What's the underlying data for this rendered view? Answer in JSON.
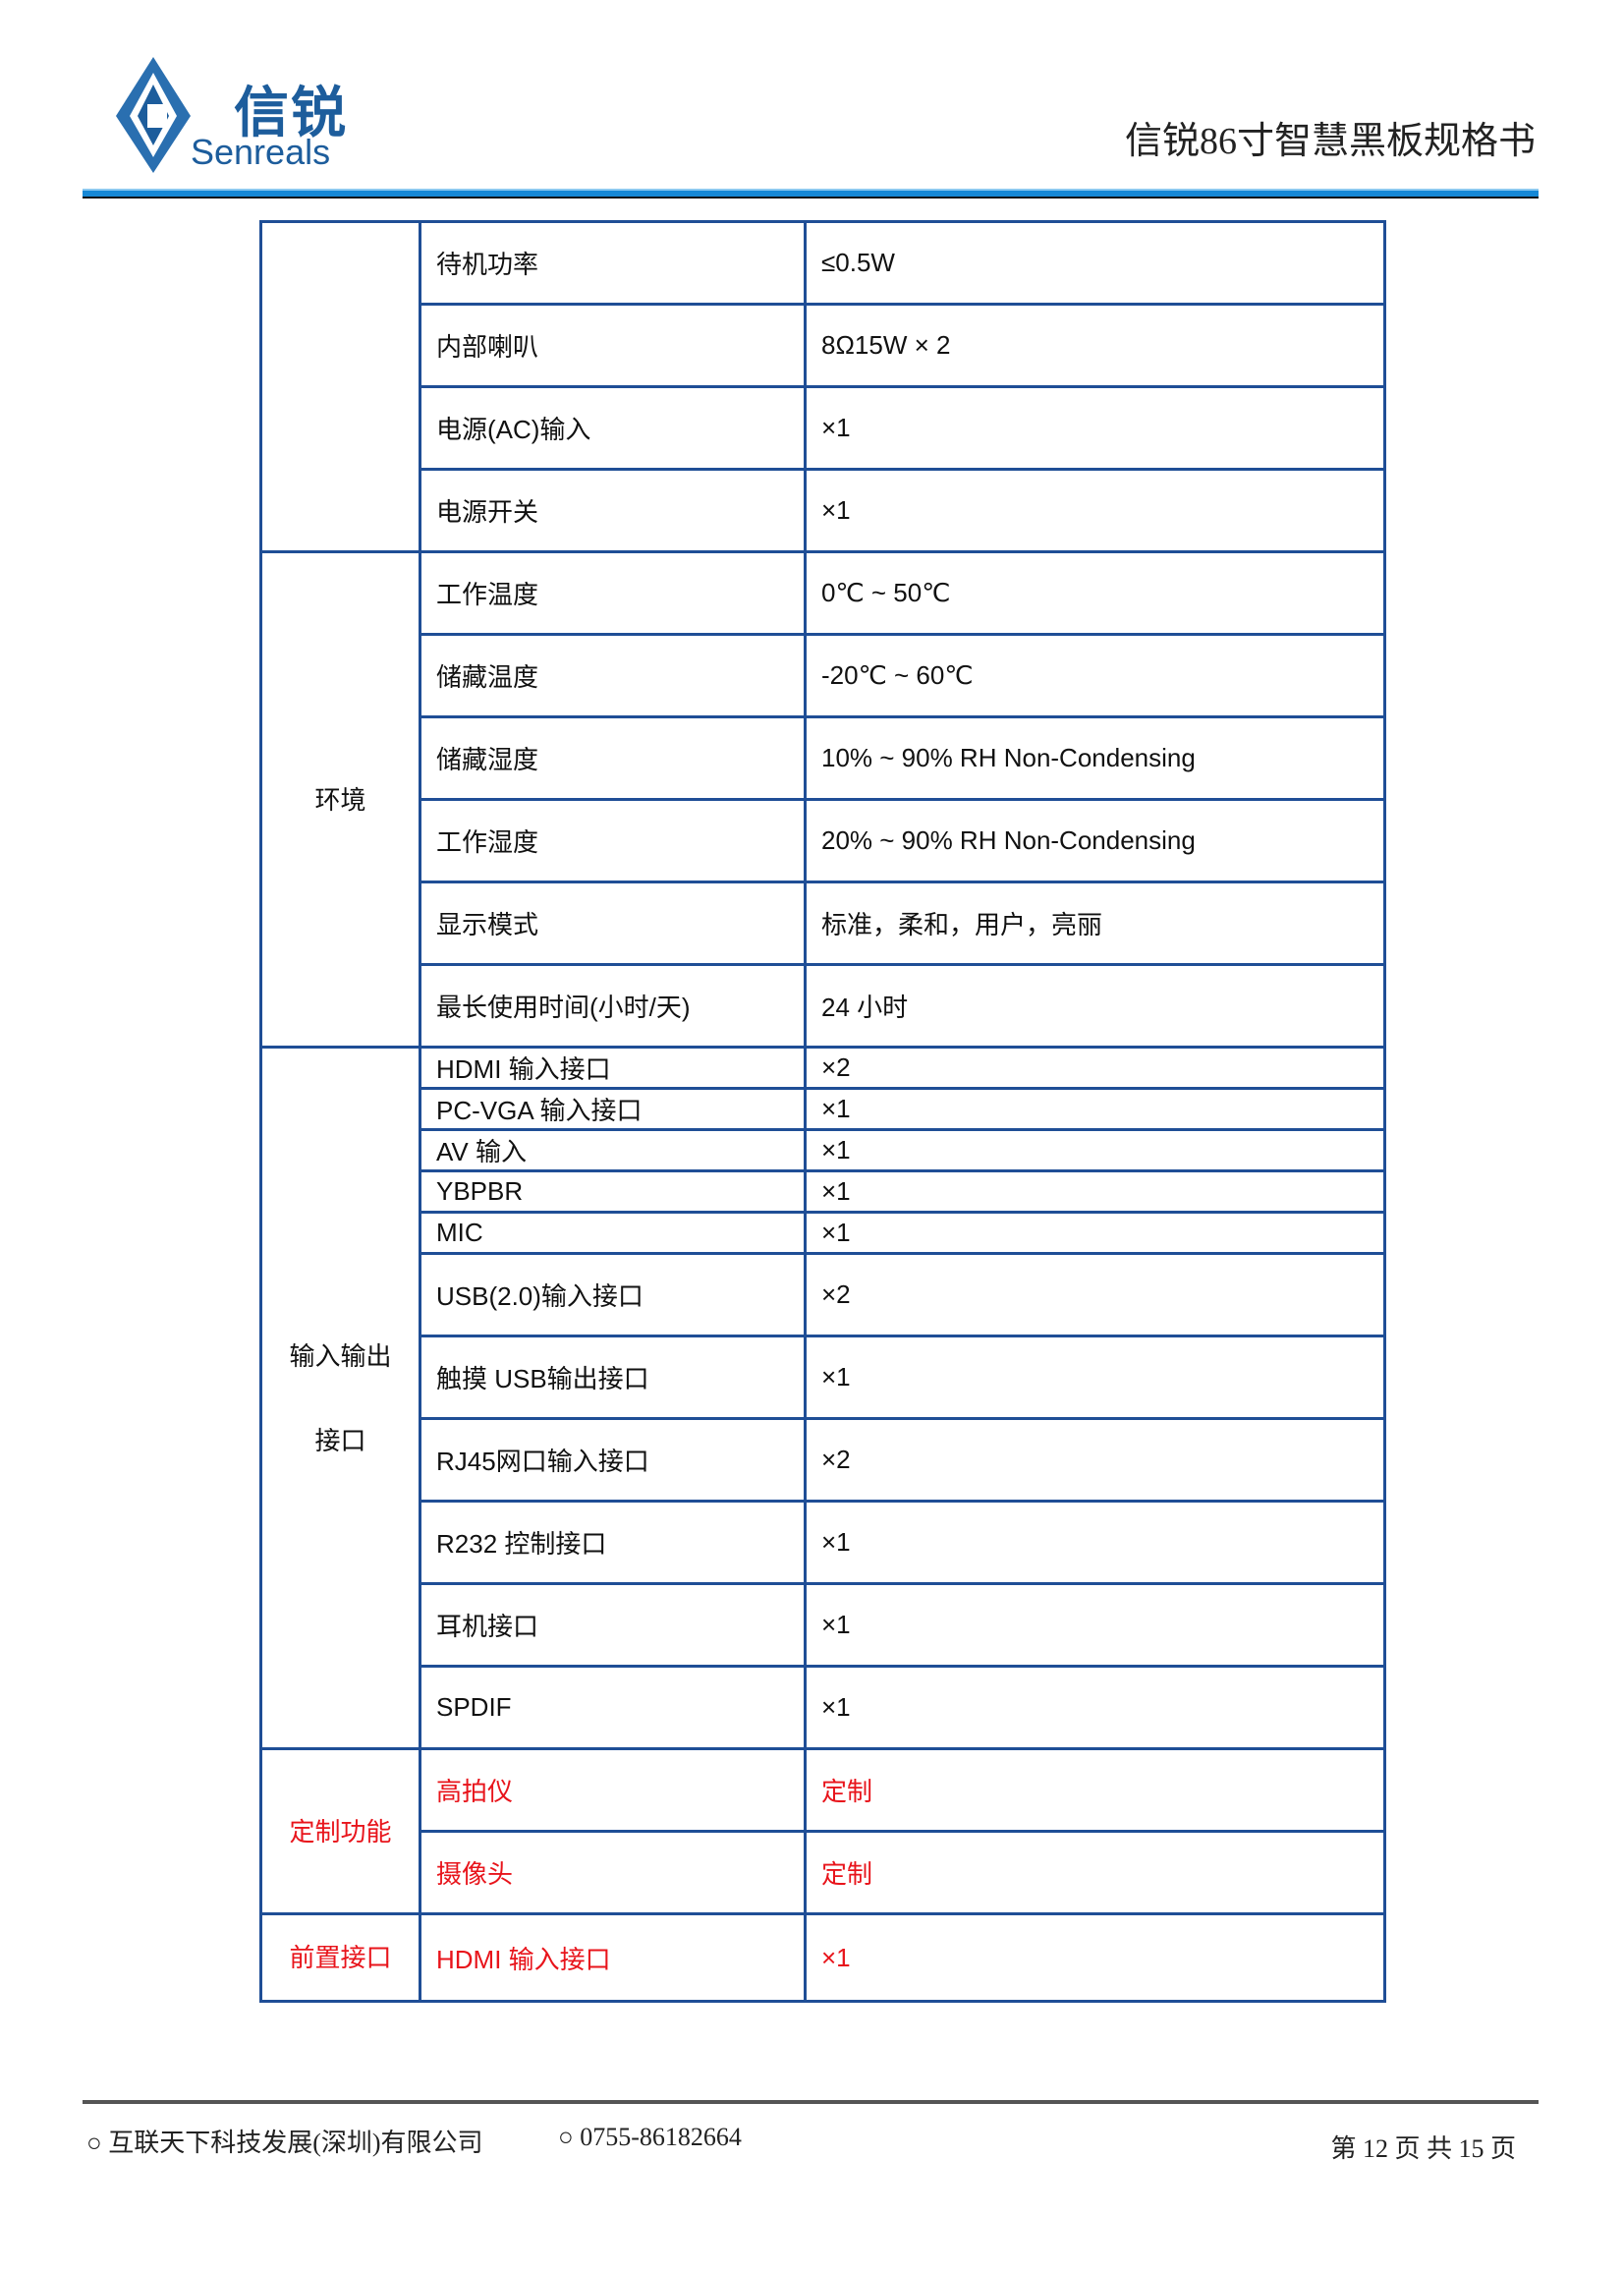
{
  "header": {
    "logo_cn": "信锐",
    "logo_en": "Senreals",
    "title": "信锐86寸智慧黑板规格书"
  },
  "colors": {
    "border": "#1f4e96",
    "accent_red": "#e8141b",
    "header_rule": "#1688d6"
  },
  "spec_table": {
    "groups": [
      {
        "category": [
          ""
        ],
        "red": false,
        "rows": [
          {
            "name": "待机功率",
            "value": "≤0.5W"
          },
          {
            "name": "内部喇叭",
            "value": "8Ω15W × 2"
          },
          {
            "name": "电源(AC)输入",
            "value": "×1"
          },
          {
            "name": "电源开关",
            "value": "×1"
          }
        ]
      },
      {
        "category": [
          "环境"
        ],
        "red": false,
        "rows": [
          {
            "name": "工作温度",
            "value": "0℃  ~ 50℃"
          },
          {
            "name": "储藏温度",
            "value": "-20℃  ~ 60℃"
          },
          {
            "name": "储藏湿度",
            "value": "10% ~ 90% RH Non-Condensing"
          },
          {
            "name": "工作湿度",
            "value": "20% ~ 90% RH Non-Condensing"
          },
          {
            "name": "显示模式",
            "value": "标准，柔和，用户，亮丽"
          },
          {
            "name": "最长使用时间(小时/天)",
            "value": "24  小时"
          }
        ]
      },
      {
        "category": [
          "输入输出",
          "接口"
        ],
        "red": false,
        "rows": [
          {
            "name": "HDMI  输入接口",
            "value": "×2"
          },
          {
            "name": "PC-VGA 输入接口",
            "value": "×1"
          },
          {
            "name": "AV 输入",
            "value": "×1"
          },
          {
            "name": "YBPBR",
            "value": "×1"
          },
          {
            "name": "MIC",
            "value": "×1"
          },
          {
            "name": "USB(2.0)输入接口",
            "value": "×2"
          },
          {
            "name": "触摸 USB输出接口",
            "value": "×1"
          },
          {
            "name": "RJ45网口输入接口",
            "value": "×2"
          },
          {
            "name": "R232 控制接口",
            "value": "×1"
          },
          {
            "name": "耳机接口",
            "value": "×1"
          },
          {
            "name": "SPDIF",
            "value": "×1"
          }
        ]
      },
      {
        "category": [
          "定制功能"
        ],
        "red": true,
        "rows": [
          {
            "name": "高拍仪",
            "value": "定制"
          },
          {
            "name": "摄像头",
            "value": "定制"
          }
        ]
      },
      {
        "category": [
          "前置接口"
        ],
        "red": true,
        "rows": [
          {
            "name": "HDMI  输入接口",
            "value": "×1"
          }
        ]
      }
    ]
  },
  "footer": {
    "company": "○ 互联天下科技发展(深圳)有限公司",
    "phone": "○ 0755-86182664",
    "page": "第 12 页 共 15 页"
  }
}
